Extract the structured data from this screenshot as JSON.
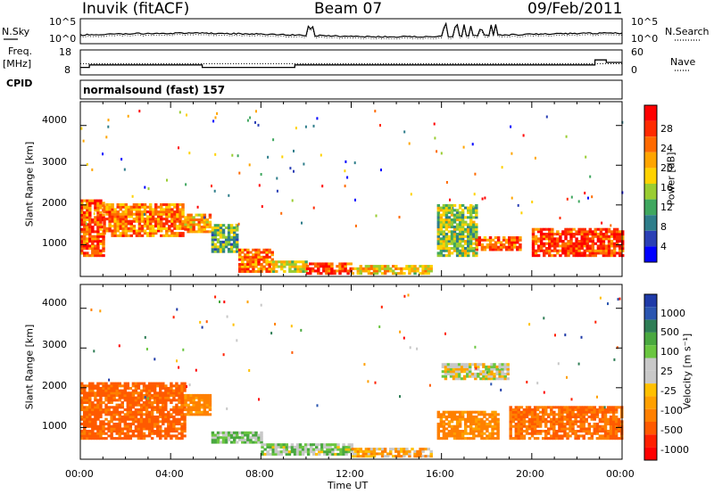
{
  "header": {
    "station": "Inuvik (fitACF)",
    "beam": "Beam 07",
    "date": "09/Feb/2011"
  },
  "labels": {
    "nsky": "N.Sky",
    "freq_line1": "Freq.",
    "freq_line2": "[MHz]",
    "cpid": "CPID",
    "nsearch": "N.Search",
    "nave": "Nave",
    "program": "normalsound (fast) 157"
  },
  "chart_data": [
    {
      "type": "line",
      "title": "",
      "series": [
        {
          "name": "N.Sky"
        },
        {
          "name": "N.Search"
        }
      ],
      "y_left_ticks": [
        "10^5",
        "10^0"
      ],
      "y_right_ticks": [
        "10^5",
        "10^0"
      ],
      "approx_noise_level_log10": 0.5
    },
    {
      "type": "line",
      "series": [
        {
          "name": "Freq.",
          "unit": "MHz"
        },
        {
          "name": "Nave"
        }
      ],
      "y_left_ticks": [
        18,
        8
      ],
      "y_right_ticks": [
        60,
        0
      ],
      "freq_segments": [
        {
          "t0": 0.0,
          "t1": 0.4,
          "f": 11.0
        },
        {
          "t0": 0.4,
          "t1": 5.4,
          "f": 12.0
        },
        {
          "t0": 5.4,
          "t1": 9.5,
          "f": 11.0
        },
        {
          "t0": 9.5,
          "t1": 14.0,
          "f": 12.0
        },
        {
          "t0": 14.0,
          "t1": 19.8,
          "f": 12.0
        },
        {
          "t0": 19.8,
          "t1": 22.8,
          "f": 12.0
        },
        {
          "t0": 22.8,
          "t1": 23.3,
          "f": 14.0
        },
        {
          "t0": 23.3,
          "t1": 24.0,
          "f": 13.0
        }
      ],
      "nave_approx": 27
    },
    {
      "type": "heatmap",
      "ylabel": "Slant Range [km]",
      "y_ticks": [
        1000,
        2000,
        3000,
        4000
      ],
      "ylim": [
        200,
        4600
      ],
      "colorbar_label": "Power [dB]",
      "colorbar_ticks": [
        4,
        8,
        12,
        16,
        20,
        24,
        28
      ],
      "colorbar_colors": [
        "#0000ff",
        "#2a3fb5",
        "#2e7d8a",
        "#3fa75f",
        "#9acd32",
        "#ffd200",
        "#ffa500",
        "#ff6a00",
        "#ff2a00",
        "#ff0000"
      ],
      "echo_bands": [
        {
          "t0": 0.0,
          "t1": 1.0,
          "r0": 700,
          "r1": 2100,
          "level": 24
        },
        {
          "t0": 1.0,
          "t1": 4.6,
          "r0": 1200,
          "r1": 2000,
          "level": 22
        },
        {
          "t0": 4.6,
          "t1": 5.8,
          "r0": 1300,
          "r1": 1750,
          "level": 20
        },
        {
          "t0": 5.8,
          "t1": 7.0,
          "r0": 800,
          "r1": 1500,
          "level": 12
        },
        {
          "t0": 7.0,
          "t1": 8.5,
          "r0": 300,
          "r1": 900,
          "level": 22
        },
        {
          "t0": 8.5,
          "t1": 10.0,
          "r0": 300,
          "r1": 600,
          "level": 16
        },
        {
          "t0": 10.0,
          "t1": 12.0,
          "r0": 250,
          "r1": 500,
          "level": 26
        },
        {
          "t0": 12.0,
          "t1": 15.5,
          "r0": 250,
          "r1": 450,
          "level": 18
        },
        {
          "t0": 15.8,
          "t1": 17.5,
          "r0": 700,
          "r1": 2000,
          "level": 14
        },
        {
          "t0": 17.5,
          "t1": 19.5,
          "r0": 850,
          "r1": 1200,
          "level": 24
        },
        {
          "t0": 20.0,
          "t1": 24.0,
          "r0": 700,
          "r1": 1400,
          "level": 26
        }
      ]
    },
    {
      "type": "heatmap",
      "xlabel": "Time UT",
      "ylabel": "Slant Range [km]",
      "y_ticks": [
        1000,
        2000,
        3000,
        4000
      ],
      "ylim": [
        200,
        4600
      ],
      "x_ticks": [
        "00:00",
        "04:00",
        "08:00",
        "12:00",
        "16:00",
        "20:00",
        "00:00"
      ],
      "colorbar_label": "Velocity [m s⁻¹]",
      "colorbar_ticks": [
        1000,
        500,
        100,
        25,
        -25,
        -100,
        -500,
        -1000
      ],
      "colorbar_colors": [
        "#1e3aa8",
        "#2a55b0",
        "#2e7d55",
        "#49a83f",
        "#6ac640",
        "#c8c8c8",
        "#c8c8c8",
        "#ffc000",
        "#ffa000",
        "#ff8000",
        "#ff5a00",
        "#ff2000",
        "#ff0000"
      ],
      "echo_bands": [
        {
          "t0": 0.0,
          "t1": 4.6,
          "r0": 700,
          "r1": 2100,
          "v": -300
        },
        {
          "t0": 4.6,
          "t1": 5.8,
          "r0": 1300,
          "r1": 1800,
          "v": -150
        },
        {
          "t0": 5.8,
          "t1": 8.0,
          "r0": 600,
          "r1": 900,
          "v": 80
        },
        {
          "t0": 8.0,
          "t1": 12.0,
          "r0": 300,
          "r1": 600,
          "v": 60
        },
        {
          "t0": 12.0,
          "t1": 15.5,
          "r0": 250,
          "r1": 450,
          "v": -80
        },
        {
          "t0": 15.8,
          "t1": 18.5,
          "r0": 700,
          "r1": 1400,
          "v": -150
        },
        {
          "t0": 16.0,
          "t1": 19.0,
          "r0": 2200,
          "r1": 2600,
          "v": 0
        },
        {
          "t0": 19.0,
          "t1": 24.0,
          "r0": 700,
          "r1": 1500,
          "v": -250
        }
      ]
    }
  ]
}
